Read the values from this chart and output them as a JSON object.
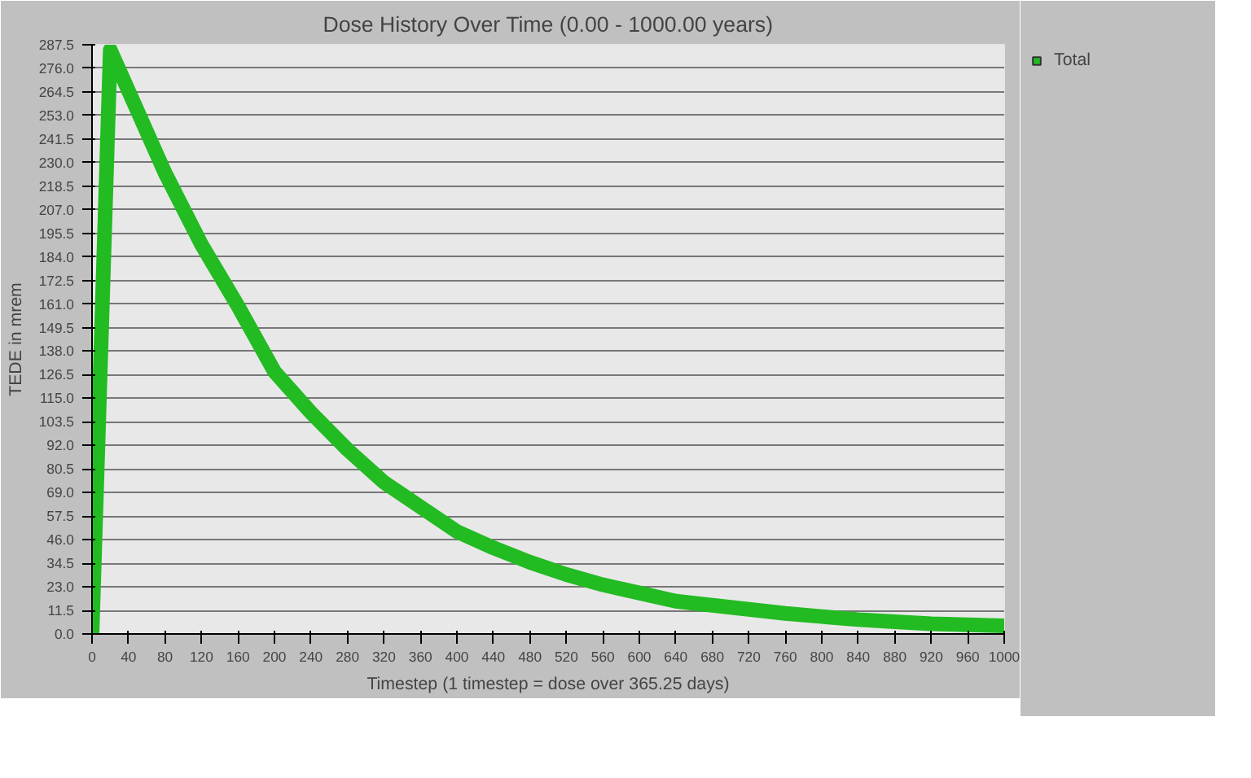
{
  "chart_data": {
    "type": "line",
    "title": "Dose History Over Time (0.00 - 1000.00 years)",
    "xlabel": "Timestep (1 timestep = dose over 365.25 days)",
    "ylabel": "TEDE in mrem",
    "x": [
      0,
      20,
      40,
      80,
      120,
      160,
      200,
      240,
      280,
      320,
      360,
      400,
      440,
      480,
      520,
      560,
      600,
      640,
      680,
      720,
      760,
      800,
      840,
      880,
      920,
      960,
      1000
    ],
    "series": [
      {
        "name": "Total",
        "color": "#22bb22",
        "values": [
          0,
          285,
          265,
          225,
          190,
          160,
          128,
          108,
          90,
          74,
          62,
          50,
          42,
          35,
          29,
          24,
          20,
          16,
          14,
          12,
          10,
          8.5,
          7,
          6,
          5,
          4.5,
          4
        ]
      }
    ],
    "xlim": [
      0,
      1000
    ],
    "xticks": [
      0,
      40,
      80,
      120,
      160,
      200,
      240,
      280,
      320,
      360,
      400,
      440,
      480,
      520,
      560,
      600,
      640,
      680,
      720,
      760,
      800,
      840,
      880,
      920,
      960,
      1000
    ],
    "ylim": [
      0,
      287.5
    ],
    "yticks": [
      {
        "value": 0,
        "label": "0.0"
      },
      11.5,
      {
        "value": 23,
        "label": "23.0"
      },
      34.5,
      {
        "value": 46,
        "label": "46.0"
      },
      57.5,
      {
        "value": 69,
        "label": "69.0"
      },
      80.5,
      {
        "value": 92,
        "label": "92.0"
      },
      103.5,
      {
        "value": 115,
        "label": "115.0"
      },
      126.5,
      {
        "value": 138,
        "label": "138.0"
      },
      149.5,
      {
        "value": 161,
        "label": "161.0"
      },
      172.5,
      {
        "value": 184,
        "label": "184.0"
      },
      195.5,
      {
        "value": 207,
        "label": "207.0"
      },
      218.5,
      {
        "value": 230,
        "label": "230.0"
      },
      241.5,
      {
        "value": 253,
        "label": "253.0"
      },
      264.5,
      {
        "value": 276,
        "label": "276.0"
      },
      287.5
    ],
    "grid": "y",
    "legend": "top right",
    "marker": "none",
    "line_style": "solid"
  }
}
